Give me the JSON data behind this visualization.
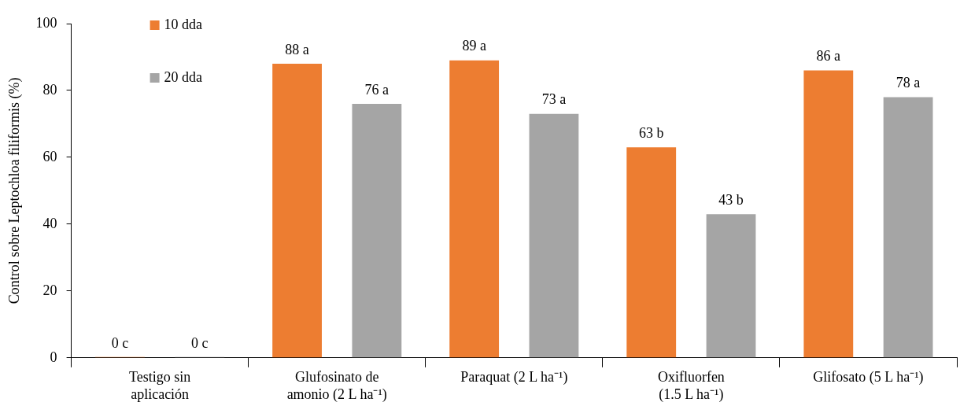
{
  "chart_data": {
    "type": "bar",
    "ylabel": "Control sobre Leptochloa filiformis (%)",
    "categories": [
      "Testigo sin aplicación",
      "Glufosinato de amonio (2 L ha⁻¹)",
      "Paraquat (2 L ha⁻¹)",
      "Oxifluorfen (1.5 L ha⁻¹)",
      "Glifosato (5 L ha⁻¹)"
    ],
    "series": [
      {
        "name": "10 dda",
        "color": "#ed7d31",
        "values": [
          0,
          88,
          89,
          63,
          86
        ],
        "value_labels": [
          "0 c",
          "88 a",
          "89 a",
          "63 b",
          "86 a"
        ]
      },
      {
        "name": "20 dda",
        "color": "#a5a5a5",
        "values": [
          0,
          76,
          73,
          43,
          78
        ],
        "value_labels": [
          "0 c",
          "76 a",
          "73 a",
          "43 b",
          "78 a"
        ]
      }
    ],
    "ylim": [
      0,
      100
    ],
    "yticks": [
      0,
      20,
      40,
      60,
      80,
      100
    ],
    "grid": false,
    "legend": "top left"
  }
}
